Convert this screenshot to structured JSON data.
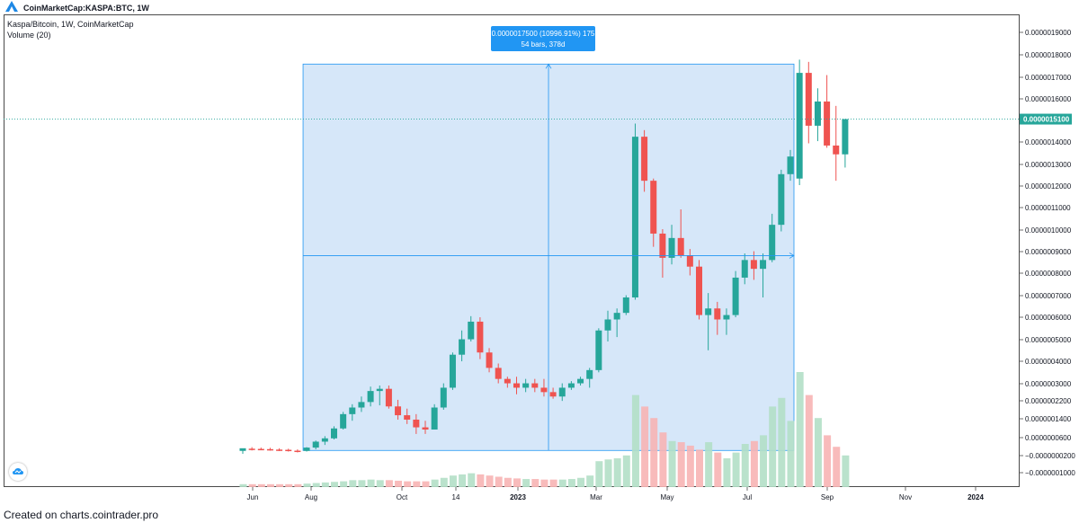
{
  "header": {
    "symbol": "CoinMarketCap:KASPA:BTC, 1W"
  },
  "legend": {
    "title": "Kaspa/Bitcoin, 1W, CoinMarketCap",
    "volume": "Volume (20)"
  },
  "footer": {
    "text": "Created on charts.cointrader.pro"
  },
  "measure": {
    "line1": "0.0000017500 (10996.91%) 175",
    "line2": "54 bars, 378d"
  },
  "colors": {
    "up": "#26a69a",
    "down": "#ef5350",
    "measure_fill": "#d4e6f9",
    "measure_stroke": "#2196f3",
    "label_bg": "#2196f3"
  },
  "chart_data": {
    "type": "candlestick",
    "y_axis_ticks": [
      "0.0000019000",
      "0.0000018000",
      "0.0000017000",
      "0.0000016000",
      "0.0000015000",
      "0.0000014000",
      "0.0000013000",
      "0.0000012000",
      "0.0000011000",
      "0.0000010000",
      "0.0000009000",
      "0.0000008000",
      "0.0000007000",
      "0.0000006000",
      "0.0000005000",
      "0.0000004000",
      "0.0000003000",
      "0.0000002200",
      "0.0000001400",
      "0.0000000600",
      "−0.0000000200",
      "−0.0000001000"
    ],
    "x_axis_ticks": [
      "Jun",
      "Aug",
      "Oct",
      "14",
      "2023",
      "Mar",
      "May",
      "Jul",
      "Sep",
      "Nov",
      "2024"
    ],
    "current_price": "0.0000015100",
    "candles": [
      {
        "o": 3e-09,
        "h": 1.3e-08,
        "l": -1e-08,
        "c": 1.5e-08
      },
      {
        "o": 1.3e-08,
        "h": 2e-08,
        "l": 5e-09,
        "c": 1.2e-08
      },
      {
        "o": 1.2e-08,
        "h": 1.8e-08,
        "l": 6e-09,
        "c": 1.1e-08
      },
      {
        "o": 1.1e-08,
        "h": 1.7e-08,
        "l": 4e-09,
        "c": 9e-09
      },
      {
        "o": 9e-09,
        "h": 1.5e-08,
        "l": 2e-09,
        "c": 8e-09
      },
      {
        "o": 8e-09,
        "h": 1.3e-08,
        "l": 0.0,
        "c": 4e-09
      },
      {
        "o": 4e-09,
        "h": 1e-08,
        "l": -4e-09,
        "c": 3e-09
      },
      {
        "o": 3e-09,
        "h": 2e-08,
        "l": 0.0,
        "c": 1.8e-08
      },
      {
        "o": 1.8e-08,
        "h": 5e-08,
        "l": 1e-08,
        "c": 4.5e-08
      },
      {
        "o": 4.5e-08,
        "h": 7e-08,
        "l": 3e-08,
        "c": 6e-08
      },
      {
        "o": 6e-08,
        "h": 1.15e-07,
        "l": 5.5e-08,
        "c": 1.05e-07
      },
      {
        "o": 1.05e-07,
        "h": 1.8e-07,
        "l": 1e-07,
        "c": 1.7e-07
      },
      {
        "o": 1.7e-07,
        "h": 2.15e-07,
        "l": 1.4e-07,
        "c": 2e-07
      },
      {
        "o": 2e-07,
        "h": 2.5e-07,
        "l": 1.8e-07,
        "c": 2.25e-07
      },
      {
        "o": 2.25e-07,
        "h": 2.95e-07,
        "l": 2.05e-07,
        "c": 2.75e-07
      },
      {
        "o": 2.75e-07,
        "h": 3e-07,
        "l": 2.1e-07,
        "c": 2.85e-07
      },
      {
        "o": 2.85e-07,
        "h": 3e-07,
        "l": 1.95e-07,
        "c": 2.05e-07
      },
      {
        "o": 2.05e-07,
        "h": 2.35e-07,
        "l": 1.45e-07,
        "c": 1.65e-07
      },
      {
        "o": 1.65e-07,
        "h": 1.95e-07,
        "l": 1.25e-07,
        "c": 1.45e-07
      },
      {
        "o": 1.45e-07,
        "h": 1.7e-07,
        "l": 8e-08,
        "c": 1.1e-07
      },
      {
        "o": 1.1e-07,
        "h": 1.4e-07,
        "l": 8e-08,
        "c": 1e-07
      },
      {
        "o": 1e-07,
        "h": 2.15e-07,
        "l": 1e-07,
        "c": 2e-07
      },
      {
        "o": 2e-07,
        "h": 3.1e-07,
        "l": 1.9e-07,
        "c": 2.9e-07
      },
      {
        "o": 2.9e-07,
        "h": 4.5e-07,
        "l": 2.8e-07,
        "c": 4.4e-07
      },
      {
        "o": 4.4e-07,
        "h": 5.5e-07,
        "l": 4.1e-07,
        "c": 5.1e-07
      },
      {
        "o": 5.1e-07,
        "h": 6.15e-07,
        "l": 5e-07,
        "c": 5.9e-07
      },
      {
        "o": 5.9e-07,
        "h": 6.1e-07,
        "l": 4.2e-07,
        "c": 4.5e-07
      },
      {
        "o": 4.5e-07,
        "h": 4.7e-07,
        "l": 3.6e-07,
        "c": 3.8e-07
      },
      {
        "o": 3.8e-07,
        "h": 4e-07,
        "l": 3.1e-07,
        "c": 3.3e-07
      },
      {
        "o": 3.3e-07,
        "h": 3.4e-07,
        "l": 2.9e-07,
        "c": 3.1e-07
      },
      {
        "o": 3.1e-07,
        "h": 3.4e-07,
        "l": 2.6e-07,
        "c": 2.9e-07
      },
      {
        "o": 2.9e-07,
        "h": 3.3e-07,
        "l": 2.7e-07,
        "c": 3.1e-07
      },
      {
        "o": 3.1e-07,
        "h": 3.3e-07,
        "l": 2.7e-07,
        "c": 2.9e-07
      },
      {
        "o": 2.9e-07,
        "h": 3.3e-07,
        "l": 2.5e-07,
        "c": 2.7e-07
      },
      {
        "o": 2.7e-07,
        "h": 2.9e-07,
        "l": 2.4e-07,
        "c": 2.5e-07
      },
      {
        "o": 2.5e-07,
        "h": 3.1e-07,
        "l": 2.3e-07,
        "c": 2.9e-07
      },
      {
        "o": 2.9e-07,
        "h": 3.2e-07,
        "l": 2.8e-07,
        "c": 3.1e-07
      },
      {
        "o": 3.1e-07,
        "h": 3.4e-07,
        "l": 3e-07,
        "c": 3.3e-07
      },
      {
        "o": 3.3e-07,
        "h": 3.8e-07,
        "l": 2.9e-07,
        "c": 3.7e-07
      },
      {
        "o": 3.7e-07,
        "h": 5.6e-07,
        "l": 3.6e-07,
        "c": 5.5e-07
      },
      {
        "o": 5.5e-07,
        "h": 6.4e-07,
        "l": 5e-07,
        "c": 6e-07
      },
      {
        "o": 6e-07,
        "h": 6.5e-07,
        "l": 5.2e-07,
        "c": 6.3e-07
      },
      {
        "o": 6.3e-07,
        "h": 7.1e-07,
        "l": 6.2e-07,
        "c": 7e-07
      },
      {
        "o": 7e-07,
        "h": 1.49e-06,
        "l": 6.9e-07,
        "c": 1.43e-06
      },
      {
        "o": 1.43e-06,
        "h": 1.46e-06,
        "l": 1.18e-06,
        "c": 1.23e-06
      },
      {
        "o": 1.23e-06,
        "h": 1.24e-06,
        "l": 9.3e-07,
        "c": 9.9e-07
      },
      {
        "o": 9.9e-07,
        "h": 1.01e-06,
        "l": 7.9e-07,
        "c": 8.8e-07
      },
      {
        "o": 8.8e-07,
        "h": 1.03e-06,
        "l": 8.5e-07,
        "c": 9.7e-07
      },
      {
        "o": 9.7e-07,
        "h": 1.1e-06,
        "l": 8.8e-07,
        "c": 8.9e-07
      },
      {
        "o": 8.9e-07,
        "h": 9.2e-07,
        "l": 8e-07,
        "c": 8.4e-07
      },
      {
        "o": 8.4e-07,
        "h": 8.7e-07,
        "l": 6e-07,
        "c": 6.2e-07
      },
      {
        "o": 6.2e-07,
        "h": 7.2e-07,
        "l": 4.6e-07,
        "c": 6.5e-07
      },
      {
        "o": 6.5e-07,
        "h": 6.8e-07,
        "l": 5.3e-07,
        "c": 6e-07
      },
      {
        "o": 6e-07,
        "h": 6.5e-07,
        "l": 5.3e-07,
        "c": 6.2e-07
      },
      {
        "o": 6.2e-07,
        "h": 8.2e-07,
        "l": 6.1e-07,
        "c": 7.9e-07
      },
      {
        "o": 7.9e-07,
        "h": 9e-07,
        "l": 7.6e-07,
        "c": 8.7e-07
      },
      {
        "o": 8.7e-07,
        "h": 9.1e-07,
        "l": 7.8e-07,
        "c": 8.3e-07
      },
      {
        "o": 8.3e-07,
        "h": 9e-07,
        "l": 7e-07,
        "c": 8.7e-07
      },
      {
        "o": 8.7e-07,
        "h": 1.08e-06,
        "l": 8.6e-07,
        "c": 1.03e-06
      },
      {
        "o": 1.03e-06,
        "h": 1.28e-06,
        "l": 1e-06,
        "c": 1.26e-06
      },
      {
        "o": 1.26e-06,
        "h": 1.37e-06,
        "l": 1.23e-06,
        "c": 1.34e-06
      },
      {
        "o": 1.24e-06,
        "h": 1.78e-06,
        "l": 1.21e-06,
        "c": 1.72e-06
      },
      {
        "o": 1.72e-06,
        "h": 1.77e-06,
        "l": 1.4e-06,
        "c": 1.48e-06
      },
      {
        "o": 1.48e-06,
        "h": 1.65e-06,
        "l": 1.41e-06,
        "c": 1.59e-06
      },
      {
        "o": 1.59e-06,
        "h": 1.71e-06,
        "l": 1.38e-06,
        "c": 1.39e-06
      },
      {
        "o": 1.39e-06,
        "h": 1.57e-06,
        "l": 1.23e-06,
        "c": 1.35e-06
      },
      {
        "o": 1.35e-06,
        "h": 1.51e-06,
        "l": 1.29e-06,
        "c": 1.51e-06
      }
    ],
    "volume": [
      {
        "v": 0.05,
        "up": true
      },
      {
        "v": 0.05,
        "up": false
      },
      {
        "v": 0.05,
        "up": false
      },
      {
        "v": 0.05,
        "up": false
      },
      {
        "v": 0.05,
        "up": false
      },
      {
        "v": 0.05,
        "up": false
      },
      {
        "v": 0.05,
        "up": false
      },
      {
        "v": 0.06,
        "up": true
      },
      {
        "v": 0.07,
        "up": true
      },
      {
        "v": 0.08,
        "up": true
      },
      {
        "v": 0.09,
        "up": true
      },
      {
        "v": 0.1,
        "up": true
      },
      {
        "v": 0.12,
        "up": true
      },
      {
        "v": 0.12,
        "up": true
      },
      {
        "v": 0.13,
        "up": true
      },
      {
        "v": 0.12,
        "up": true
      },
      {
        "v": 0.12,
        "up": false
      },
      {
        "v": 0.11,
        "up": false
      },
      {
        "v": 0.1,
        "up": false
      },
      {
        "v": 0.1,
        "up": false
      },
      {
        "v": 0.1,
        "up": false
      },
      {
        "v": 0.13,
        "up": true
      },
      {
        "v": 0.16,
        "up": true
      },
      {
        "v": 0.2,
        "up": true
      },
      {
        "v": 0.22,
        "up": true
      },
      {
        "v": 0.24,
        "up": true
      },
      {
        "v": 0.22,
        "up": false
      },
      {
        "v": 0.2,
        "up": false
      },
      {
        "v": 0.18,
        "up": false
      },
      {
        "v": 0.16,
        "up": false
      },
      {
        "v": 0.15,
        "up": false
      },
      {
        "v": 0.14,
        "up": true
      },
      {
        "v": 0.14,
        "up": false
      },
      {
        "v": 0.13,
        "up": false
      },
      {
        "v": 0.13,
        "up": false
      },
      {
        "v": 0.13,
        "up": true
      },
      {
        "v": 0.14,
        "up": true
      },
      {
        "v": 0.16,
        "up": true
      },
      {
        "v": 0.2,
        "up": true
      },
      {
        "v": 0.45,
        "up": true
      },
      {
        "v": 0.48,
        "up": true
      },
      {
        "v": 0.5,
        "up": true
      },
      {
        "v": 0.55,
        "up": true
      },
      {
        "v": 1.6,
        "up": true
      },
      {
        "v": 1.4,
        "up": false
      },
      {
        "v": 1.2,
        "up": false
      },
      {
        "v": 0.95,
        "up": false
      },
      {
        "v": 0.8,
        "up": true
      },
      {
        "v": 0.78,
        "up": false
      },
      {
        "v": 0.72,
        "up": false
      },
      {
        "v": 0.65,
        "up": false
      },
      {
        "v": 0.78,
        "up": true
      },
      {
        "v": 0.6,
        "up": false
      },
      {
        "v": 0.5,
        "up": true
      },
      {
        "v": 0.6,
        "up": true
      },
      {
        "v": 0.75,
        "up": true
      },
      {
        "v": 0.8,
        "up": false
      },
      {
        "v": 0.9,
        "up": true
      },
      {
        "v": 1.4,
        "up": true
      },
      {
        "v": 1.55,
        "up": true
      },
      {
        "v": 1.15,
        "up": true
      },
      {
        "v": 2.0,
        "up": true
      },
      {
        "v": 1.6,
        "up": false
      },
      {
        "v": 1.2,
        "up": true
      },
      {
        "v": 0.9,
        "up": false
      },
      {
        "v": 0.7,
        "up": false
      },
      {
        "v": 0.55,
        "up": true
      }
    ],
    "y_min": -1e-07,
    "y_max": 1.9e-06
  }
}
